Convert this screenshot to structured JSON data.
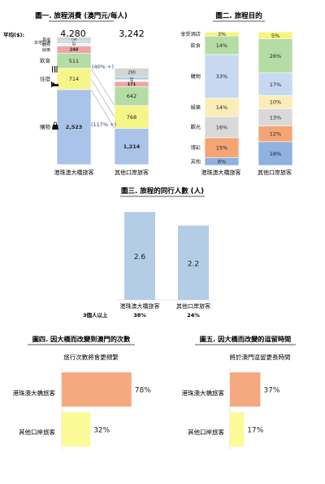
{
  "chart_data": [
    {
      "id": "fig1",
      "type": "bar",
      "stacked": true,
      "title": "圖一. 旅程消費 (澳門元/每人)",
      "avg_label": "平均($):",
      "totals": [
        "4,280",
        "3,242"
      ],
      "categories": [
        "港珠澳大橋旅客",
        "其他口岸旅客"
      ],
      "series": [
        {
          "name": "購物",
          "values": [
            2523,
            1214
          ]
        },
        {
          "name": "住宿",
          "values": [
            714,
            768
          ]
        },
        {
          "name": "飲食",
          "values": [
            511,
            642
          ]
        },
        {
          "name": "餘樂",
          "values": [
            240,
            171
          ]
        },
        {
          "name": "觀光",
          "values": [
            99,
            58
          ]
        },
        {
          "name": "本地交通",
          "values": [
            57,
            99
          ]
        },
        {
          "name": "其他",
          "values": [
            136,
            290
          ]
        }
      ],
      "annotations": [
        "(40% +)",
        "(117% +)"
      ],
      "colors": [
        "#a9c4e8",
        "#f5f58a",
        "#b6dca6",
        "#f0a4a4",
        "#f5f5f5",
        "#a8d0e0",
        "#d4d4d4"
      ]
    },
    {
      "id": "fig2",
      "type": "bar",
      "stacked": true,
      "percent": true,
      "title": "圖二. 旅程目的",
      "categories": [
        "港珠澳大橋旅客",
        "其他口岸旅客"
      ],
      "series": [
        {
          "name": "其他",
          "values": [
            6,
            18
          ]
        },
        {
          "name": "博彩",
          "values": [
            15,
            12
          ]
        },
        {
          "name": "觀光",
          "values": [
            16,
            13
          ]
        },
        {
          "name": "娛樂",
          "values": [
            14,
            10
          ]
        },
        {
          "name": "購物",
          "values": [
            33,
            17
          ]
        },
        {
          "name": "飲食",
          "values": [
            14,
            26
          ]
        },
        {
          "name": "享受酒店",
          "values": [
            3,
            5
          ]
        }
      ],
      "colors": [
        "#8fb2e0",
        "#f5a574",
        "#d9d9d9",
        "#fcecb8",
        "#c7d9f0",
        "#b6dca6",
        "#f5f57a"
      ]
    },
    {
      "id": "fig3",
      "type": "bar",
      "title": "圖三. 旅程的同行人數 (人)",
      "categories": [
        "港珠澳大橋旅客",
        "其他口岸旅客"
      ],
      "values": [
        2.6,
        2.2
      ],
      "row_label": "3個人以上",
      "row_values": [
        "38%",
        "24%"
      ],
      "ylim": [
        0,
        2.7
      ],
      "colors": [
        "#b4cde6"
      ]
    },
    {
      "id": "fig4",
      "type": "bar",
      "orientation": "horizontal",
      "title": "圖四. 因大橋而改變到澳門的次數",
      "subtitle": "旅行次數將會更頻繁",
      "categories": [
        "港珠澳大橋旅客",
        "其他口岸旅客"
      ],
      "values": [
        78,
        32
      ],
      "value_labels": [
        "78%",
        "32%"
      ],
      "xlim": [
        0,
        90
      ],
      "colors": [
        "#f5a97f",
        "#fafa96"
      ]
    },
    {
      "id": "fig5",
      "type": "bar",
      "orientation": "horizontal",
      "title": "圖五. 因大橋而改變的逗留時間",
      "subtitle": "將於澳門逗留更長時間",
      "categories": [
        "港珠澳大橋旅客",
        "其他口岸旅客"
      ],
      "values": [
        37,
        17
      ],
      "value_labels": [
        "37%",
        "17%"
      ],
      "xlim": [
        0,
        90
      ],
      "colors": [
        "#f5a97f",
        "#fafa96"
      ]
    }
  ]
}
